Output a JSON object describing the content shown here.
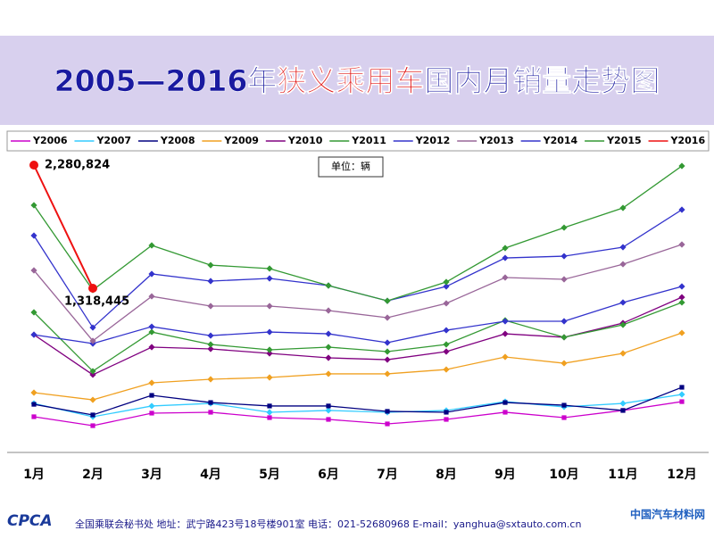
{
  "chart_data": {
    "type": "line",
    "title_parts": [
      "2005—2016年",
      "狭义乘用车",
      "国内月销量走势图"
    ],
    "unit_note": "单位：辆",
    "footer": {
      "logo": "CPCA",
      "text": "全国乘联会秘书处  地址：武宁路423号18号楼901室    电话：021-52680968   E-mail：yanghua@sxtauto.com.cn",
      "watermark": "中国汽车材料网"
    },
    "categories": [
      "1月",
      "2月",
      "3月",
      "4月",
      "5月",
      "6月",
      "7月",
      "8月",
      "9月",
      "10月",
      "11月",
      "12月"
    ],
    "series": [
      {
        "name": "Y2006",
        "color": "#cc00cc",
        "marker": "square",
        "values": [
          314000,
          244000,
          342000,
          349000,
          307000,
          293000,
          258000,
          293000,
          349000,
          307000,
          363000,
          432000
        ]
      },
      {
        "name": "Y2007",
        "color": "#33ccff",
        "marker": "diamond",
        "values": [
          418000,
          314000,
          398000,
          418000,
          349000,
          363000,
          349000,
          363000,
          432000,
          391000,
          418000,
          488000
        ]
      },
      {
        "name": "Y2008",
        "color": "#000080",
        "marker": "square",
        "values": [
          411000,
          328000,
          481000,
          425000,
          398000,
          398000,
          356000,
          349000,
          425000,
          404000,
          363000,
          544000
        ]
      },
      {
        "name": "Y2009",
        "color": "#f0a020",
        "marker": "diamond",
        "values": [
          502000,
          446000,
          579000,
          607000,
          621000,
          649000,
          649000,
          683000,
          781000,
          732000,
          809000,
          969000
        ]
      },
      {
        "name": "Y2010",
        "color": "#800080",
        "marker": "diamond",
        "values": [
          955000,
          642000,
          858000,
          844000,
          809000,
          774000,
          760000,
          823000,
          962000,
          935000,
          1046000,
          1248000
        ]
      },
      {
        "name": "Y2011",
        "color": "#339933",
        "marker": "diamond",
        "values": [
          1130000,
          670000,
          976000,
          879000,
          837000,
          858000,
          823000,
          879000,
          1067000,
          935000,
          1032000,
          1207000
        ]
      },
      {
        "name": "Y2012",
        "color": "#3333cc",
        "marker": "diamond",
        "values": [
          955000,
          886000,
          1018000,
          948000,
          976000,
          962000,
          893000,
          990000,
          1060000,
          1060000,
          1207000,
          1332000
        ]
      },
      {
        "name": "Y2013",
        "color": "#996699",
        "marker": "diamond",
        "values": [
          1458000,
          907000,
          1255000,
          1179000,
          1179000,
          1144000,
          1088000,
          1200000,
          1402000,
          1388000,
          1506000,
          1660000
        ]
      },
      {
        "name": "Y2014",
        "color": "#3333cc",
        "marker": "diamond",
        "values": [
          1730000,
          1011000,
          1430000,
          1374000,
          1395000,
          1339000,
          1220000,
          1332000,
          1555000,
          1569000,
          1639000,
          1932000
        ]
      },
      {
        "name": "Y2015",
        "color": "#339933",
        "marker": "diamond",
        "values": [
          1967000,
          1304000,
          1653000,
          1499000,
          1472000,
          1339000,
          1220000,
          1367000,
          1632000,
          1792000,
          1946000,
          2274000
        ]
      },
      {
        "name": "Y2016",
        "color": "#ee1111",
        "marker": "circle",
        "values": [
          2280824,
          1318445,
          null,
          null,
          null,
          null,
          null,
          null,
          null,
          null,
          null,
          null
        ],
        "value_labels": [
          "2,280,824",
          "1,318,445",
          null,
          null,
          null,
          null,
          null,
          null,
          null,
          null,
          null,
          null
        ]
      }
    ]
  }
}
